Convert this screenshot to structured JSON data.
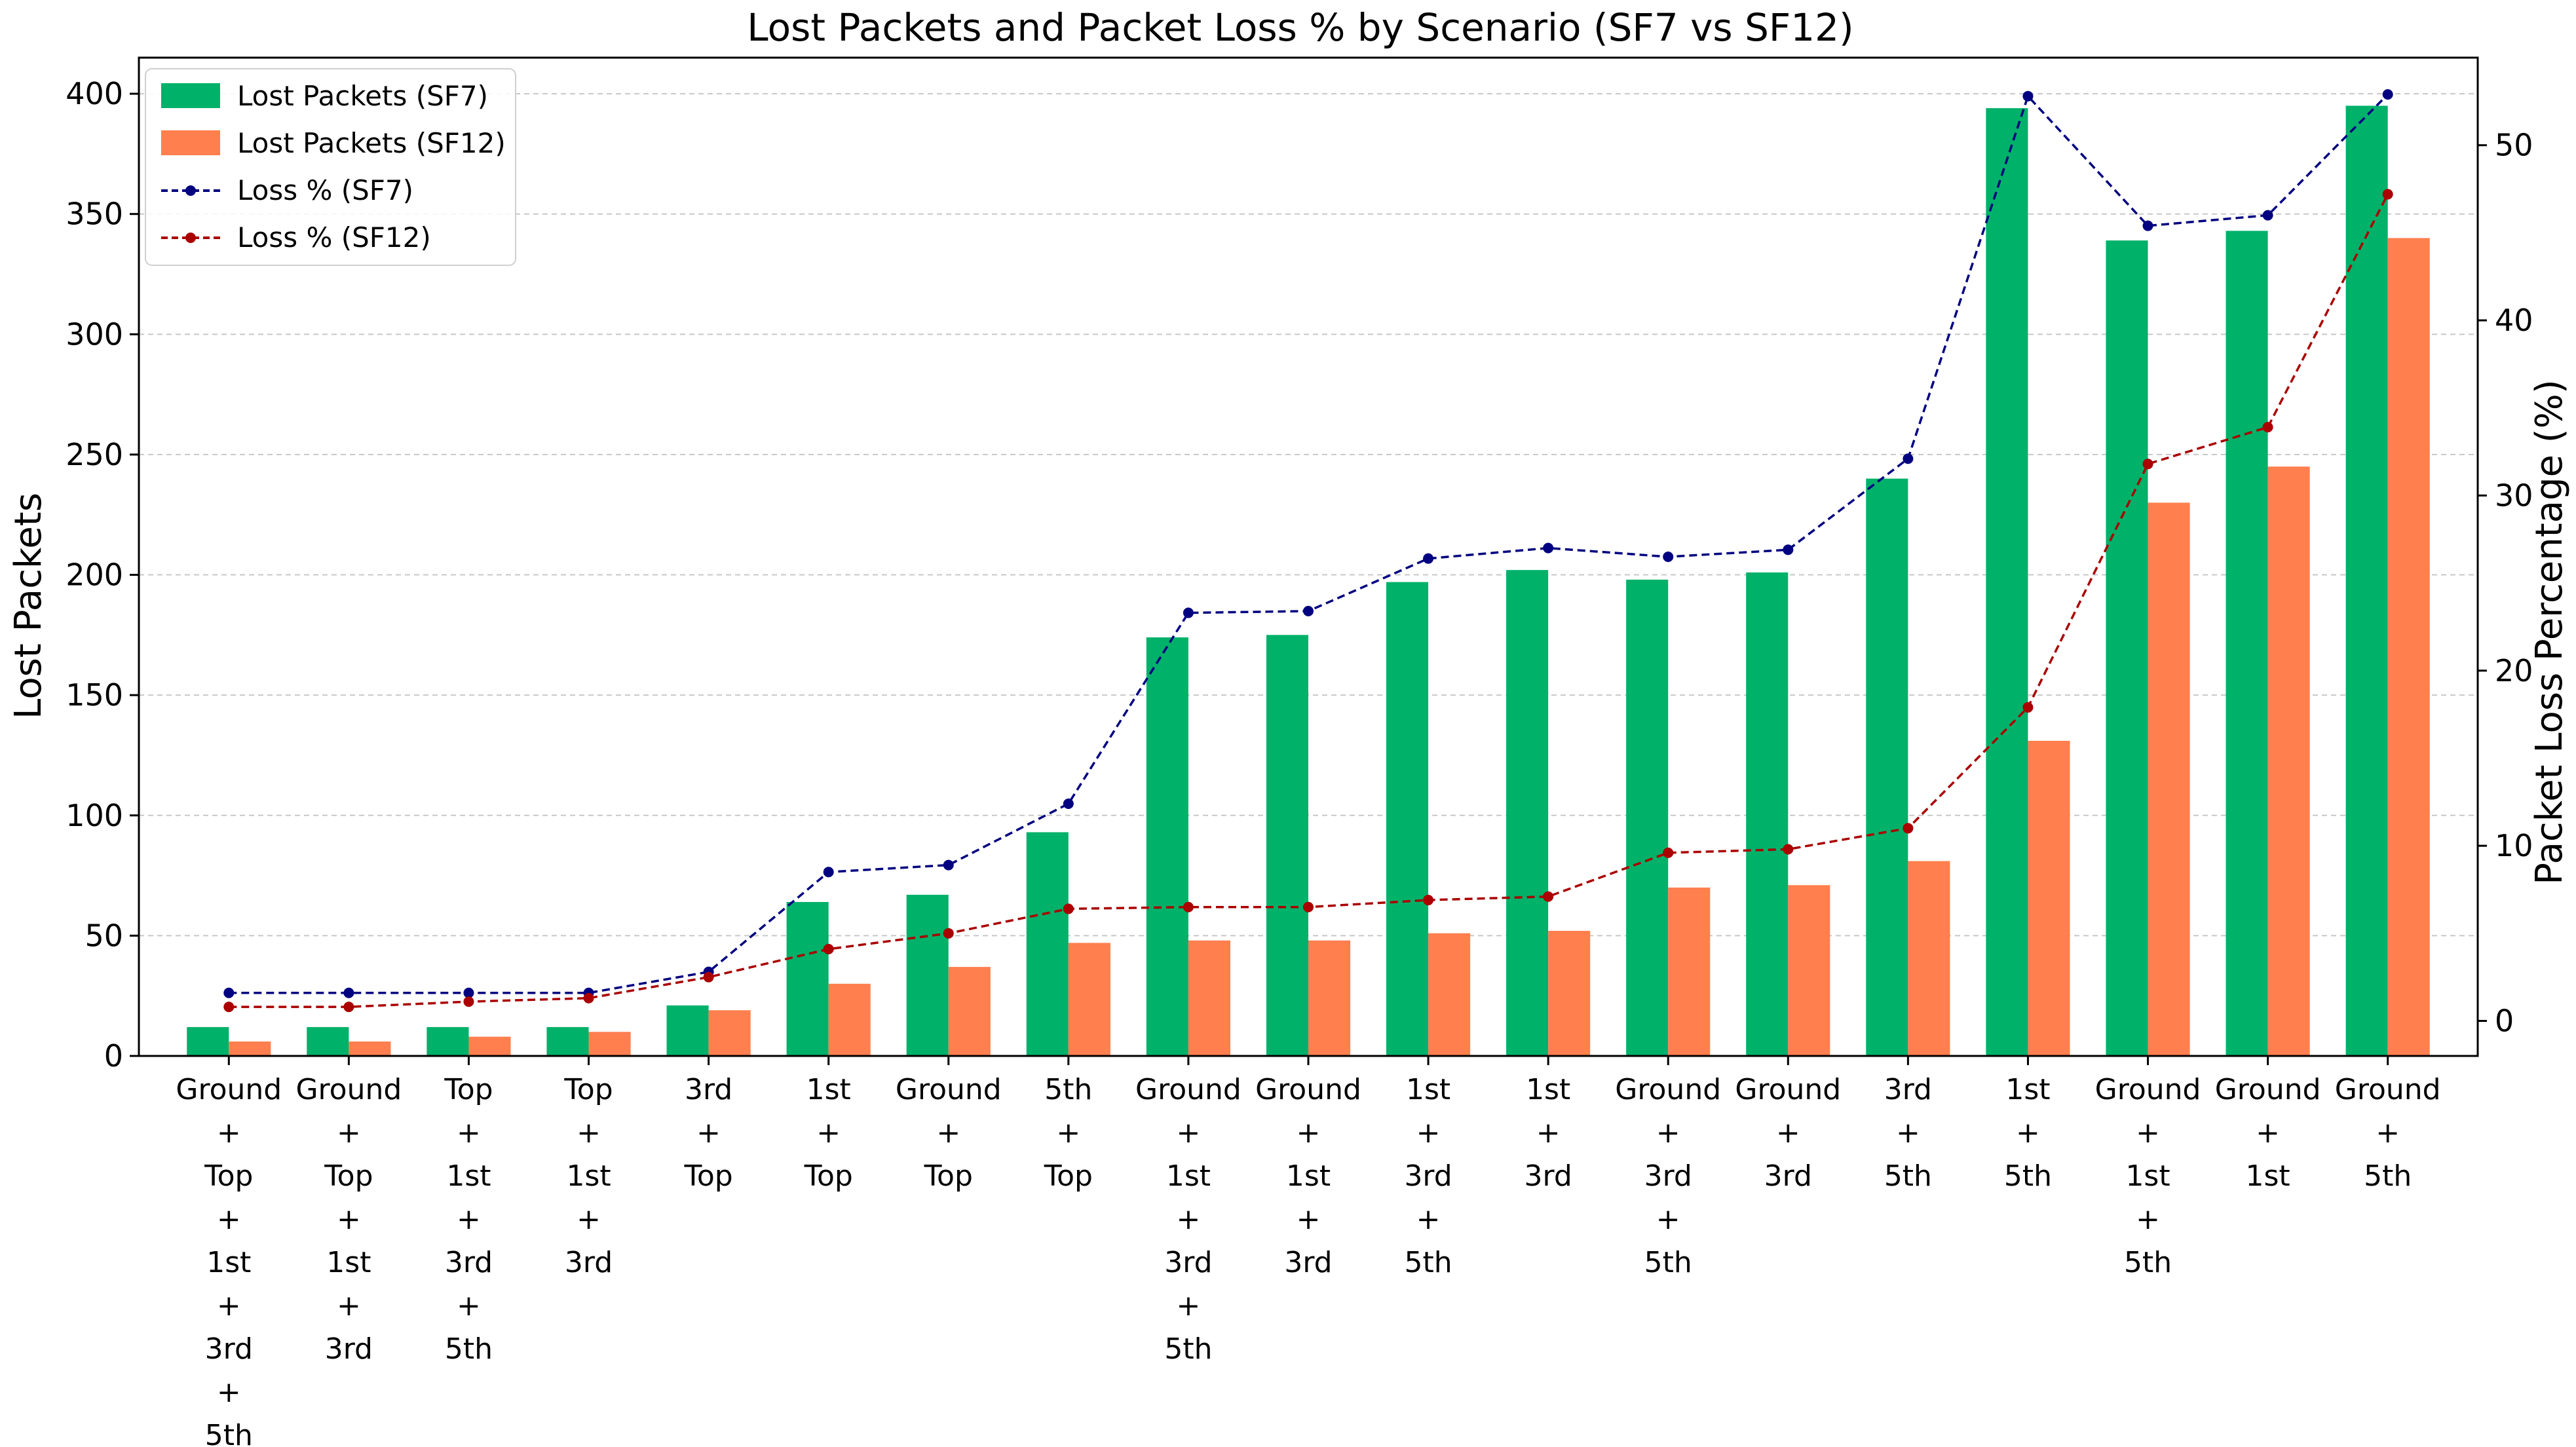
{
  "chart_data": {
    "type": "bar",
    "title": "Lost Packets and Packet Loss % by Scenario (SF7 vs SF12)",
    "ylabel": "Lost Packets",
    "y2label": "Packet Loss Percentage (%)",
    "xlabel": "",
    "ylim": [
      0,
      415
    ],
    "y2lim": [
      -2,
      55
    ],
    "yticks": [
      0,
      50,
      100,
      150,
      200,
      250,
      300,
      350,
      400
    ],
    "y2ticks": [
      0,
      10,
      20,
      30,
      40,
      50
    ],
    "grid": "horizontal dashed",
    "legend_position": "top-left",
    "categories": [
      [
        "Ground",
        "+",
        "Top",
        "+",
        "1st",
        "+",
        "3rd",
        "+",
        "5th"
      ],
      [
        "Ground",
        "+",
        "Top",
        "+",
        "1st",
        "+",
        "3rd"
      ],
      [
        "Top",
        "+",
        "1st",
        "+",
        "3rd",
        "+",
        "5th"
      ],
      [
        "Top",
        "+",
        "1st",
        "+",
        "3rd"
      ],
      [
        "3rd",
        "+",
        "Top"
      ],
      [
        "1st",
        "+",
        "Top"
      ],
      [
        "Ground",
        "+",
        "Top"
      ],
      [
        "5th",
        "+",
        "Top"
      ],
      [
        "Ground",
        "+",
        "1st",
        "+",
        "3rd",
        "+",
        "5th"
      ],
      [
        "Ground",
        "+",
        "1st",
        "+",
        "3rd"
      ],
      [
        "1st",
        "+",
        "3rd",
        "+",
        "5th"
      ],
      [
        "1st",
        "+",
        "3rd"
      ],
      [
        "Ground",
        "+",
        "3rd",
        "+",
        "5th"
      ],
      [
        "Ground",
        "+",
        "3rd"
      ],
      [
        "3rd",
        "+",
        "5th"
      ],
      [
        "1st",
        "+",
        "5th"
      ],
      [
        "Ground",
        "+",
        "1st",
        "+",
        "5th"
      ],
      [
        "Ground",
        "+",
        "1st"
      ],
      [
        "Ground",
        "+",
        "5th"
      ]
    ],
    "bar_series": [
      {
        "name": "Lost Packets (SF7)",
        "color": "#00b16a",
        "values": [
          12,
          12,
          12,
          12,
          21,
          64,
          67,
          93,
          174,
          175,
          197,
          202,
          198,
          201,
          240,
          394,
          339,
          343,
          395
        ]
      },
      {
        "name": "Lost Packets (SF12)",
        "color": "#ff7f4f",
        "values": [
          6,
          6,
          8,
          10,
          19,
          30,
          37,
          47,
          48,
          48,
          51,
          52,
          70,
          71,
          81,
          131,
          230,
          245,
          340
        ]
      }
    ],
    "line_series": [
      {
        "name": "Loss % (SF7)",
        "color": "#000080",
        "values": [
          1.6,
          1.6,
          1.6,
          1.6,
          2.8,
          8.5,
          8.9,
          12.4,
          23.3,
          23.4,
          26.4,
          27.0,
          26.5,
          26.9,
          32.1,
          52.8,
          45.4,
          46.0,
          52.9
        ]
      },
      {
        "name": "Loss % (SF12)",
        "color": "#aa0000",
        "values": [
          0.8,
          0.8,
          1.1,
          1.3,
          2.5,
          4.1,
          5.0,
          6.4,
          6.5,
          6.5,
          6.9,
          7.1,
          9.6,
          9.8,
          11.0,
          17.9,
          31.8,
          33.9,
          47.2
        ]
      }
    ]
  }
}
